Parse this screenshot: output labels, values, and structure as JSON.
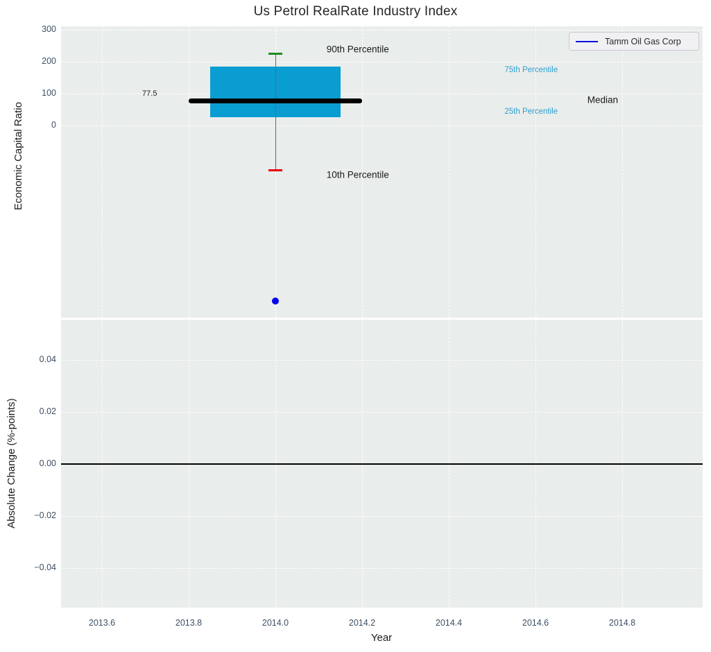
{
  "title": "Us Petrol RealRate Industry Index",
  "legend": {
    "label": "Tamm Oil Gas Corp",
    "line_color": "#0000dd"
  },
  "colors": {
    "plot_background": "#e9edec",
    "gridline": "#ffffff",
    "tick_text": "#3d4f63",
    "box_fill": "#0a9dd2",
    "median_line": "#000000",
    "whisker": "#666666",
    "p90_cap": "#1e8c1e",
    "p10_cap": "#e8000b",
    "company_dot": "#0000ee",
    "zero_line": "#000000"
  },
  "chart_data": [
    {
      "type": "box",
      "title": "Us Petrol RealRate Industry Index",
      "ylabel": "Economic Capital Ratio",
      "xlabel": "",
      "xlim": [
        2013.506,
        2014.986
      ],
      "ylim": [
        -600,
        311
      ],
      "grid": "dashed-white",
      "yticks": [
        300,
        200,
        100,
        0
      ],
      "ytick_labels": [
        "300",
        "200",
        "100",
        "0"
      ],
      "xticks": [
        2013.6,
        2013.8,
        2014.0,
        2014.2,
        2014.4,
        2014.6,
        2014.8
      ],
      "xtick_labels": [
        "2013.6",
        "2013.8",
        "2014.0",
        "2014.2",
        "2014.4",
        "2014.6",
        "2014.8"
      ],
      "box": {
        "x_center": 2014.0,
        "x_range": [
          2013.85,
          2014.15
        ],
        "median_x_range": [
          2013.8,
          2014.2
        ],
        "p90": 225,
        "p75": 185,
        "median": 77.5,
        "p25": 25,
        "p10": -140,
        "median_label": "77.5"
      },
      "company_point": {
        "name": "Tamm Oil Gas Corp",
        "x": 2014.0,
        "y": -550
      },
      "annotations": [
        {
          "text": "90th Percentile",
          "x": 2014.19,
          "y": 239,
          "color": "#1a1a1a",
          "size": 13.5
        },
        {
          "text": "75th Percentile",
          "x": 2014.59,
          "y": 174,
          "color": "#2e9fd0",
          "size": 11.5
        },
        {
          "text": "Median",
          "x": 2014.755,
          "y": 80,
          "color": "#1a1a1a",
          "size": 13.5
        },
        {
          "text": "25th Percentile",
          "x": 2014.59,
          "y": 43,
          "color": "#2e9fd0",
          "size": 11.5
        },
        {
          "text": "10th Percentile",
          "x": 2014.19,
          "y": -155,
          "color": "#1a1a1a",
          "size": 13.5
        },
        {
          "text": "77.5",
          "x": 2013.71,
          "y": 100,
          "color": "#1a1a1a",
          "size": 11
        }
      ],
      "legend_position": "upper-right"
    },
    {
      "type": "line",
      "ylabel": "Absolute Change (%-points)",
      "xlabel": "Year",
      "xlim": [
        2013.506,
        2014.986
      ],
      "ylim": [
        -0.0555,
        0.0555
      ],
      "grid": "dashed-white",
      "yticks": [
        0.04,
        0.02,
        0.0,
        -0.02,
        -0.04
      ],
      "ytick_labels": [
        "0.04",
        "0.02",
        "0.00",
        "−0.02",
        "−0.04"
      ],
      "xticks": [
        2013.6,
        2013.8,
        2014.0,
        2014.2,
        2014.4,
        2014.6,
        2014.8
      ],
      "xtick_labels": [
        "2013.6",
        "2013.8",
        "2014.0",
        "2014.2",
        "2014.4",
        "2014.6",
        "2014.8"
      ],
      "zero_line": 0.0,
      "series": []
    }
  ]
}
